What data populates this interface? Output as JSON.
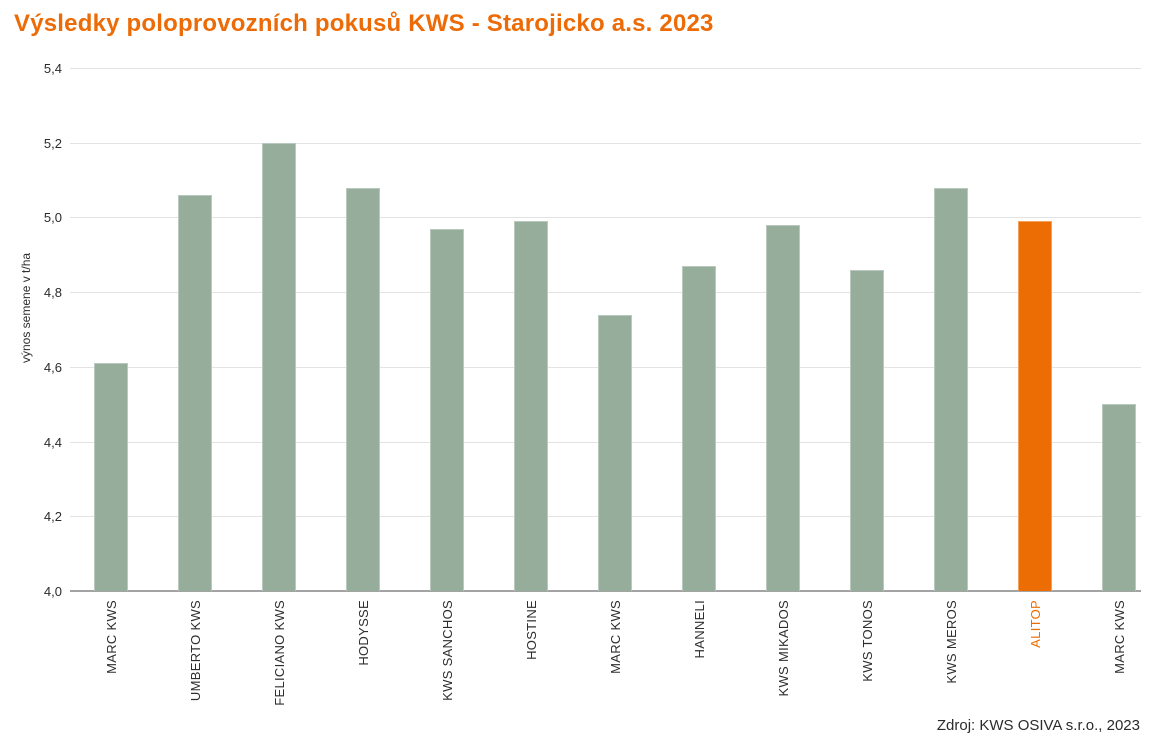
{
  "title": {
    "text": "Výsledky poloprovozních pokusů KWS - Starojicko a.s. 2023",
    "color": "#ed6b06"
  },
  "source": "Zdroj: KWS OSIVA s.r.o., 2023",
  "colors": {
    "bar_default": "#96ad9b",
    "bar_highlight": "#ec6d03",
    "highlight_label": "#ec6d03",
    "gridline": "#e3e3e3",
    "axis_line": "#a3a3a3",
    "axis_text": "#2b2b2b"
  },
  "chart_data": {
    "type": "bar",
    "title": "Výsledky poloprovozních pokusů KWS - Starojicko a.s. 2023",
    "xlabel": "",
    "ylabel": "výnos semene v t/ha",
    "ylim": [
      4.0,
      5.4
    ],
    "ytick_step": 0.2,
    "ytick_labels": [
      "5,4",
      "5,2",
      "5,0",
      "4,8",
      "4,6",
      "4,4",
      "4,2",
      "4,0"
    ],
    "grid": true,
    "legend": "none",
    "decimal_separator": ",",
    "categories": [
      "MARC KWS",
      "UMBERTO KWS",
      "FELICIANO KWS",
      "HODYSSE",
      "KWS SANCHOS",
      "HOSTINE",
      "MARC KWS",
      "HANNELI",
      "KWS MIKADOS",
      "KWS TONOS",
      "KWS MEROS",
      "ALITOP",
      "MARC KWS"
    ],
    "values": [
      4.61,
      5.06,
      5.2,
      5.08,
      4.97,
      4.99,
      4.74,
      4.87,
      4.98,
      4.86,
      5.08,
      4.99,
      4.5
    ],
    "highlight_index": 11
  }
}
